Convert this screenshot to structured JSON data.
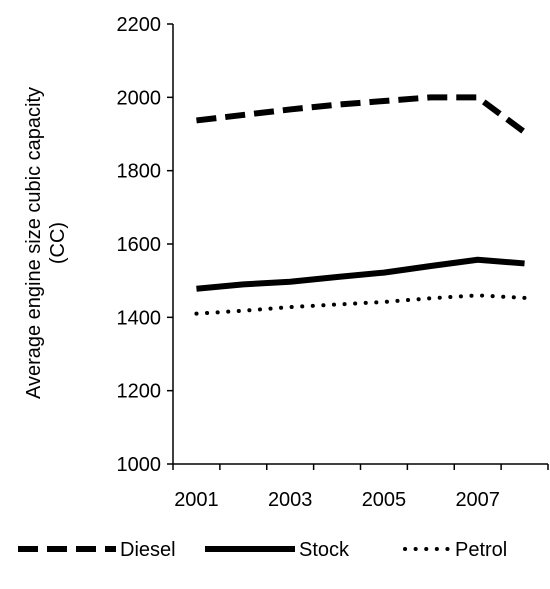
{
  "chart_data": {
    "type": "line",
    "title": "",
    "xlabel": "",
    "ylabel": "Average engine size cubic capacity (CC)",
    "ylabel_lines": [
      "Average engine size cubic capacity",
      "(CC)"
    ],
    "ylim": [
      1000,
      2200
    ],
    "yticks": [
      1000,
      1200,
      1400,
      1600,
      1800,
      2000,
      2200
    ],
    "x": [
      2001,
      2002,
      2003,
      2004,
      2005,
      2006,
      2007,
      2008
    ],
    "xlim": [
      2000.5,
      2008.5
    ],
    "xtick_labels": [
      "2001",
      "2003",
      "2005",
      "2007"
    ],
    "xtick_values": [
      2001,
      2003,
      2005,
      2007
    ],
    "grid": false,
    "legend_position": "bottom",
    "series": [
      {
        "name": "Diesel",
        "style": "dashed",
        "values": [
          1937,
          1952,
          1967,
          1980,
          1990,
          2000,
          2000,
          1905
        ]
      },
      {
        "name": "Stock",
        "style": "solid",
        "values": [
          1478,
          1490,
          1497,
          1510,
          1522,
          1540,
          1557,
          1547
        ]
      },
      {
        "name": "Petrol",
        "style": "dotted",
        "values": [
          1410,
          1418,
          1428,
          1435,
          1442,
          1452,
          1460,
          1453
        ]
      }
    ]
  }
}
